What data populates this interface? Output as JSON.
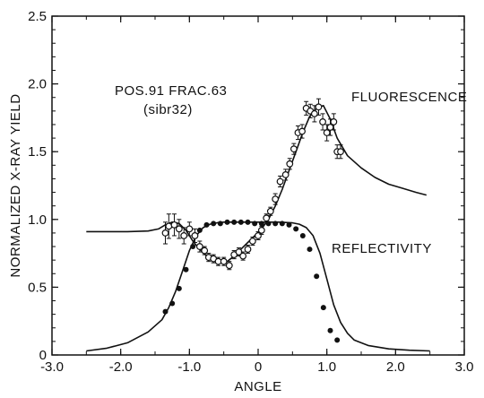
{
  "chart_data": {
    "type": "scatter",
    "xlabel": "ANGLE",
    "ylabel": "NORMALIZED X-RAY YIELD",
    "xlim": [
      -3.0,
      3.0
    ],
    "ylim": [
      0,
      2.5
    ],
    "x_ticks": [
      -3.0,
      -2.0,
      -1.0,
      0,
      1.0,
      2.0,
      3.0
    ],
    "x_tick_labels": [
      "-3.0",
      "-2.0",
      "-1.0",
      "0",
      "1.0",
      "2.0",
      "3.0"
    ],
    "y_ticks": [
      0,
      0.5,
      1.0,
      1.5,
      2.0,
      2.5
    ],
    "y_tick_labels": [
      "0",
      "0.5",
      "1.0",
      "1.5",
      "2.0",
      "2.5"
    ],
    "grid": false,
    "annotations": {
      "sample_line1": "POS.91 FRAC.63",
      "sample_line2": "(sibr32)",
      "fluorescence": "FLUORESCENCE",
      "reflectivity": "REFLECTIVITY"
    },
    "series": [
      {
        "marker": "open-circle-errorbar",
        "color": "#111111",
        "x": [
          -1.35,
          -1.3,
          -1.22,
          -1.15,
          -1.08,
          -1.0,
          -0.92,
          -0.85,
          -0.78,
          -0.72,
          -0.65,
          -0.58,
          -0.5,
          -0.42,
          -0.35,
          -0.28,
          -0.22,
          -0.15,
          -0.08,
          0.0,
          0.05,
          0.12,
          0.18,
          0.25,
          0.32,
          0.4,
          0.46,
          0.52,
          0.58,
          0.64,
          0.7,
          0.76,
          0.82,
          0.88,
          0.94,
          1.0,
          1.05,
          1.1,
          1.15,
          1.2
        ],
        "y": [
          0.9,
          0.95,
          0.96,
          0.93,
          0.88,
          0.93,
          0.88,
          0.8,
          0.77,
          0.72,
          0.71,
          0.69,
          0.69,
          0.66,
          0.74,
          0.76,
          0.73,
          0.78,
          0.84,
          0.88,
          0.92,
          1.01,
          1.06,
          1.15,
          1.28,
          1.33,
          1.41,
          1.52,
          1.64,
          1.65,
          1.82,
          1.8,
          1.78,
          1.83,
          1.72,
          1.64,
          1.68,
          1.72,
          1.5,
          1.5
        ],
        "error": [
          0.08,
          0.09,
          0.08,
          0.07,
          0.06,
          0.05,
          0.05,
          0.04,
          0.03,
          0.03,
          0.03,
          0.03,
          0.03,
          0.03,
          0.03,
          0.03,
          0.03,
          0.03,
          0.03,
          0.03,
          0.03,
          0.03,
          0.03,
          0.04,
          0.04,
          0.04,
          0.04,
          0.04,
          0.05,
          0.05,
          0.05,
          0.05,
          0.06,
          0.06,
          0.06,
          0.06,
          0.06,
          0.06,
          0.05,
          0.05
        ]
      },
      {
        "marker": "filled-circle",
        "color": "#111111",
        "x": [
          -1.35,
          -1.25,
          -1.15,
          -1.05,
          -0.95,
          -0.85,
          -0.75,
          -0.65,
          -0.55,
          -0.45,
          -0.35,
          -0.25,
          -0.15,
          -0.05,
          0.05,
          0.15,
          0.25,
          0.35,
          0.45,
          0.55,
          0.65,
          0.75,
          0.85,
          0.95,
          1.05,
          1.15
        ],
        "y": [
          0.32,
          0.38,
          0.49,
          0.63,
          0.8,
          0.92,
          0.96,
          0.97,
          0.97,
          0.98,
          0.98,
          0.98,
          0.98,
          0.97,
          0.97,
          0.97,
          0.97,
          0.97,
          0.96,
          0.93,
          0.88,
          0.78,
          0.58,
          0.35,
          0.18,
          0.11
        ]
      },
      {
        "marker": "line",
        "color": "#111111",
        "x": [
          -2.5,
          -2.2,
          -1.9,
          -1.6,
          -1.45,
          -1.35,
          -1.25,
          -1.15,
          -1.05,
          -0.95,
          -0.85,
          -0.75,
          -0.65,
          -0.55,
          -0.45,
          -0.35,
          -0.25,
          -0.15,
          -0.05,
          0.05,
          0.15,
          0.25,
          0.35,
          0.45,
          0.55,
          0.65,
          0.75,
          0.85,
          0.95,
          1.05,
          1.15,
          1.3,
          1.5,
          1.7,
          1.9,
          2.1,
          2.3,
          2.45
        ],
        "y": [
          0.91,
          0.91,
          0.91,
          0.915,
          0.93,
          0.96,
          0.98,
          0.97,
          0.92,
          0.84,
          0.78,
          0.73,
          0.7,
          0.68,
          0.69,
          0.73,
          0.78,
          0.83,
          0.88,
          0.93,
          1.0,
          1.1,
          1.22,
          1.36,
          1.5,
          1.64,
          1.76,
          1.82,
          1.84,
          1.74,
          1.6,
          1.47,
          1.38,
          1.31,
          1.26,
          1.23,
          1.2,
          1.18
        ]
      },
      {
        "marker": "line",
        "color": "#111111",
        "x": [
          -2.5,
          -2.2,
          -1.9,
          -1.6,
          -1.4,
          -1.3,
          -1.2,
          -1.1,
          -1.0,
          -0.9,
          -0.8,
          -0.7,
          -0.6,
          -0.5,
          -0.3,
          0.0,
          0.3,
          0.5,
          0.6,
          0.7,
          0.8,
          0.9,
          1.0,
          1.1,
          1.2,
          1.3,
          1.4,
          1.6,
          1.9,
          2.2,
          2.5
        ],
        "y": [
          0.03,
          0.05,
          0.09,
          0.17,
          0.26,
          0.35,
          0.47,
          0.62,
          0.77,
          0.88,
          0.94,
          0.965,
          0.975,
          0.98,
          0.98,
          0.98,
          0.98,
          0.975,
          0.965,
          0.94,
          0.88,
          0.75,
          0.56,
          0.37,
          0.24,
          0.16,
          0.11,
          0.07,
          0.045,
          0.035,
          0.03
        ]
      }
    ]
  }
}
